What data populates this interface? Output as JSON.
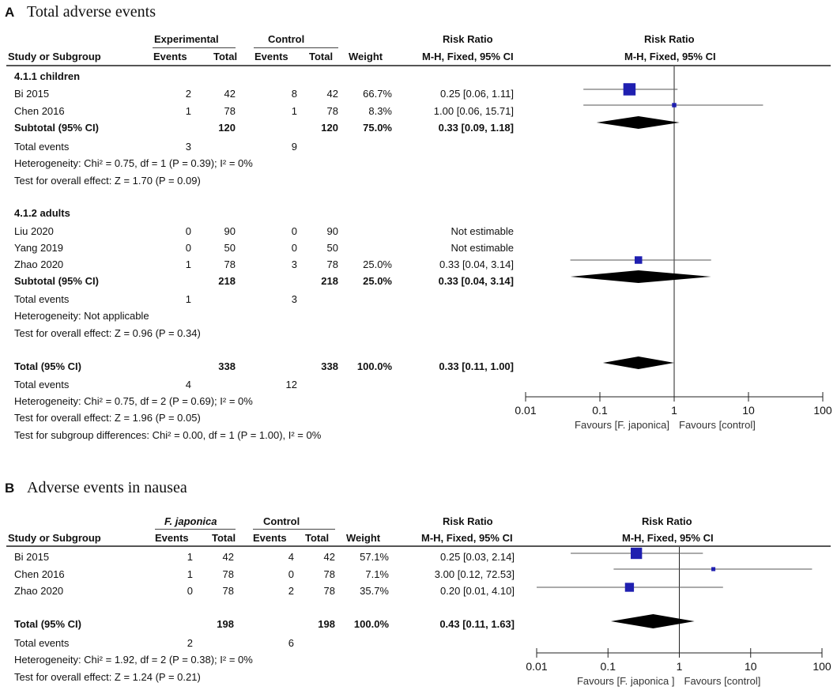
{
  "panelA": {
    "letter": "A",
    "title": "Total adverse events",
    "header": {
      "group1": "Experimental",
      "group2": "Control",
      "rr_head": "Risk Ratio",
      "rr_sub": "M-H, Fixed, 95% CI",
      "plot_head": "Risk Ratio",
      "plot_sub": "M-H, Fixed, 95% CI",
      "study": "Study or Subgroup",
      "events": "Events",
      "total": "Total",
      "weight": "Weight"
    },
    "sub1": {
      "name": "4.1.1 children",
      "rows": [
        {
          "study": "Bi 2015",
          "e1": "2",
          "t1": "42",
          "e2": "8",
          "t2": "42",
          "w": "66.7%",
          "ci": "0.25 [0.06, 1.11]"
        },
        {
          "study": "Chen 2016",
          "e1": "1",
          "t1": "78",
          "e2": "1",
          "t2": "78",
          "w": "8.3%",
          "ci": "1.00 [0.06, 15.71]"
        }
      ],
      "subtotal": {
        "label": "Subtotal (95% CI)",
        "t1": "120",
        "t2": "120",
        "w": "75.0%",
        "ci": "0.33 [0.09, 1.18]"
      },
      "events": {
        "label": "Total events",
        "e1": "3",
        "e2": "9"
      },
      "het": "Heterogeneity: Chi² = 0.75, df = 1 (P = 0.39); I² = 0%",
      "test": "Test for overall effect: Z = 1.70 (P = 0.09)"
    },
    "sub2": {
      "name": "4.1.2 adults",
      "rows": [
        {
          "study": "Liu 2020",
          "e1": "0",
          "t1": "90",
          "e2": "0",
          "t2": "90",
          "w": "",
          "ci": "Not estimable"
        },
        {
          "study": "Yang 2019",
          "e1": "0",
          "t1": "50",
          "e2": "0",
          "t2": "50",
          "w": "",
          "ci": "Not estimable"
        },
        {
          "study": "Zhao 2020",
          "e1": "1",
          "t1": "78",
          "e2": "3",
          "t2": "78",
          "w": "25.0%",
          "ci": "0.33 [0.04, 3.14]"
        }
      ],
      "subtotal": {
        "label": "Subtotal (95% CI)",
        "t1": "218",
        "t2": "218",
        "w": "25.0%",
        "ci": "0.33 [0.04, 3.14]"
      },
      "events": {
        "label": "Total events",
        "e1": "1",
        "e2": "3"
      },
      "het": "Heterogeneity: Not applicable",
      "test": "Test for overall effect: Z = 0.96 (P = 0.34)"
    },
    "total": {
      "label": "Total (95% CI)",
      "t1": "338",
      "t2": "338",
      "w": "100.0%",
      "ci": "0.33 [0.11, 1.00]"
    },
    "total_events": {
      "label": "Total events",
      "e1": "4",
      "e2": "12"
    },
    "het": "Heterogeneity: Chi² = 0.75, df = 2 (P = 0.69); I² = 0%",
    "test": "Test for overall effect: Z = 1.96 (P = 0.05)",
    "subgroup": "Test for subgroup differences: Chi² = 0.00, df = 1 (P = 1.00), I² = 0%",
    "favours_left": "Favours [F. japonica]",
    "favours_right": "Favours [control]"
  },
  "panelB": {
    "letter": "B",
    "title": "Adverse events in nausea",
    "header": {
      "group1": "F. japonica",
      "group2": "Control",
      "rr_head": "Risk Ratio",
      "rr_sub": "M-H, Fixed, 95% CI",
      "plot_head": "Risk Ratio",
      "plot_sub": "M-H, Fixed, 95% CI",
      "study": "Study or Subgroup",
      "events": "Events",
      "total": "Total",
      "weight": "Weight"
    },
    "rows": [
      {
        "study": "Bi 2015",
        "e1": "1",
        "t1": "42",
        "e2": "4",
        "t2": "42",
        "w": "57.1%",
        "ci": "0.25 [0.03, 2.14]"
      },
      {
        "study": "Chen 2016",
        "e1": "1",
        "t1": "78",
        "e2": "0",
        "t2": "78",
        "w": "7.1%",
        "ci": "3.00 [0.12, 72.53]"
      },
      {
        "study": "Zhao 2020",
        "e1": "0",
        "t1": "78",
        "e2": "2",
        "t2": "78",
        "w": "35.7%",
        "ci": "0.20 [0.01, 4.10]"
      }
    ],
    "total": {
      "label": "Total (95% CI)",
      "t1": "198",
      "t2": "198",
      "w": "100.0%",
      "ci": "0.43 [0.11, 1.63]"
    },
    "total_events": {
      "label": "Total events",
      "e1": "2",
      "e2": "6"
    },
    "het": "Heterogeneity: Chi² = 1.92, df = 2 (P = 0.38); I² = 0%",
    "test": "Test for overall effect: Z = 1.24 (P = 0.21)",
    "favours_left": "Favours [F. japonica ]",
    "favours_right": "Favours [control]"
  },
  "chart_data": [
    {
      "type": "forest",
      "title": "Total adverse events",
      "scale": "log",
      "xlim": [
        0.01,
        100
      ],
      "ticks": [
        "0.01",
        "0.1",
        "1",
        "10",
        "100"
      ],
      "null_value": 1,
      "color": "#1f1fb0",
      "studies": [
        {
          "name": "Bi 2015",
          "rr": 0.25,
          "lo": 0.06,
          "hi": 1.11,
          "weight": 66.7
        },
        {
          "name": "Chen 2016",
          "rr": 1.0,
          "lo": 0.06,
          "hi": 15.71,
          "weight": 8.3
        },
        {
          "name": "Zhao 2020",
          "rr": 0.33,
          "lo": 0.04,
          "hi": 3.14,
          "weight": 25.0
        }
      ],
      "diamonds": [
        {
          "name": "Subtotal 4.1.1 children",
          "rr": 0.33,
          "lo": 0.09,
          "hi": 1.18
        },
        {
          "name": "Subtotal 4.1.2 adults",
          "rr": 0.33,
          "lo": 0.04,
          "hi": 3.14
        },
        {
          "name": "Total",
          "rr": 0.33,
          "lo": 0.11,
          "hi": 1.0
        }
      ]
    },
    {
      "type": "forest",
      "title": "Adverse events in nausea",
      "scale": "log",
      "xlim": [
        0.01,
        100
      ],
      "ticks": [
        "0.01",
        "0.1",
        "1",
        "10",
        "100"
      ],
      "null_value": 1,
      "color": "#1f1fb0",
      "studies": [
        {
          "name": "Bi 2015",
          "rr": 0.25,
          "lo": 0.03,
          "hi": 2.14,
          "weight": 57.1
        },
        {
          "name": "Chen 2016",
          "rr": 3.0,
          "lo": 0.12,
          "hi": 72.53,
          "weight": 7.1
        },
        {
          "name": "Zhao 2020",
          "rr": 0.2,
          "lo": 0.01,
          "hi": 4.1,
          "weight": 35.7
        }
      ],
      "diamonds": [
        {
          "name": "Total",
          "rr": 0.43,
          "lo": 0.11,
          "hi": 1.63
        }
      ]
    }
  ]
}
